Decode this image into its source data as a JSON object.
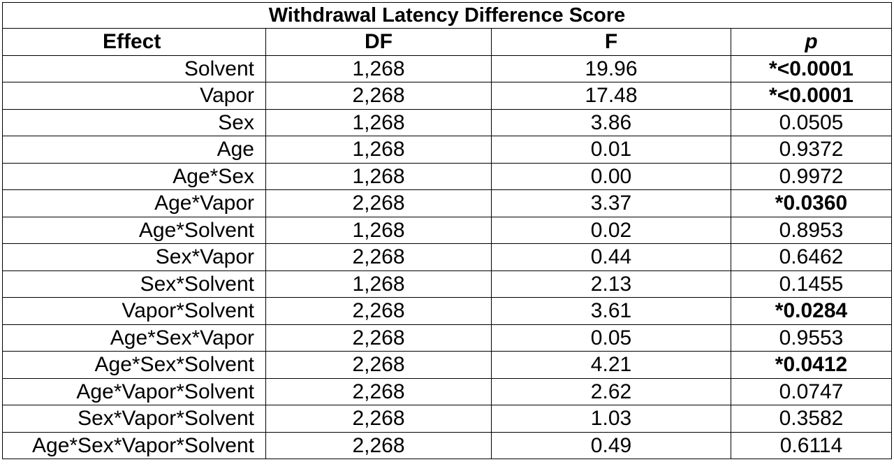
{
  "table": {
    "title": "Withdrawal Latency Difference Score",
    "headers": {
      "effect": "Effect",
      "df": "DF",
      "f": "F",
      "p": "p"
    },
    "rows": [
      {
        "effect": "Solvent",
        "df": "1,268",
        "f": "19.96",
        "p": "*<0.0001",
        "significant": true
      },
      {
        "effect": "Vapor",
        "df": "2,268",
        "f": "17.48",
        "p": "*<0.0001",
        "significant": true
      },
      {
        "effect": "Sex",
        "df": "1,268",
        "f": "3.86",
        "p": "0.0505",
        "significant": false
      },
      {
        "effect": "Age",
        "df": "1,268",
        "f": "0.01",
        "p": "0.9372",
        "significant": false
      },
      {
        "effect": "Age*Sex",
        "df": "1,268",
        "f": "0.00",
        "p": "0.9972",
        "significant": false
      },
      {
        "effect": "Age*Vapor",
        "df": "2,268",
        "f": "3.37",
        "p": "*0.0360",
        "significant": true
      },
      {
        "effect": "Age*Solvent",
        "df": "1,268",
        "f": "0.02",
        "p": "0.8953",
        "significant": false
      },
      {
        "effect": "Sex*Vapor",
        "df": "2,268",
        "f": "0.44",
        "p": "0.6462",
        "significant": false
      },
      {
        "effect": "Sex*Solvent",
        "df": "1,268",
        "f": "2.13",
        "p": "0.1455",
        "significant": false
      },
      {
        "effect": "Vapor*Solvent",
        "df": "2,268",
        "f": "3.61",
        "p": "*0.0284",
        "significant": true
      },
      {
        "effect": "Age*Sex*Vapor",
        "df": "2,268",
        "f": "0.05",
        "p": "0.9553",
        "significant": false
      },
      {
        "effect": "Age*Sex*Solvent",
        "df": "2,268",
        "f": "4.21",
        "p": "*0.0412",
        "significant": true
      },
      {
        "effect": "Age*Vapor*Solvent",
        "df": "2,268",
        "f": "2.62",
        "p": "0.0747",
        "significant": false
      },
      {
        "effect": "Sex*Vapor*Solvent",
        "df": "2,268",
        "f": "1.03",
        "p": "0.3582",
        "significant": false
      },
      {
        "effect": "Age*Sex*Vapor*Solvent",
        "df": "2,268",
        "f": "0.49",
        "p": "0.6114",
        "significant": false
      }
    ]
  }
}
